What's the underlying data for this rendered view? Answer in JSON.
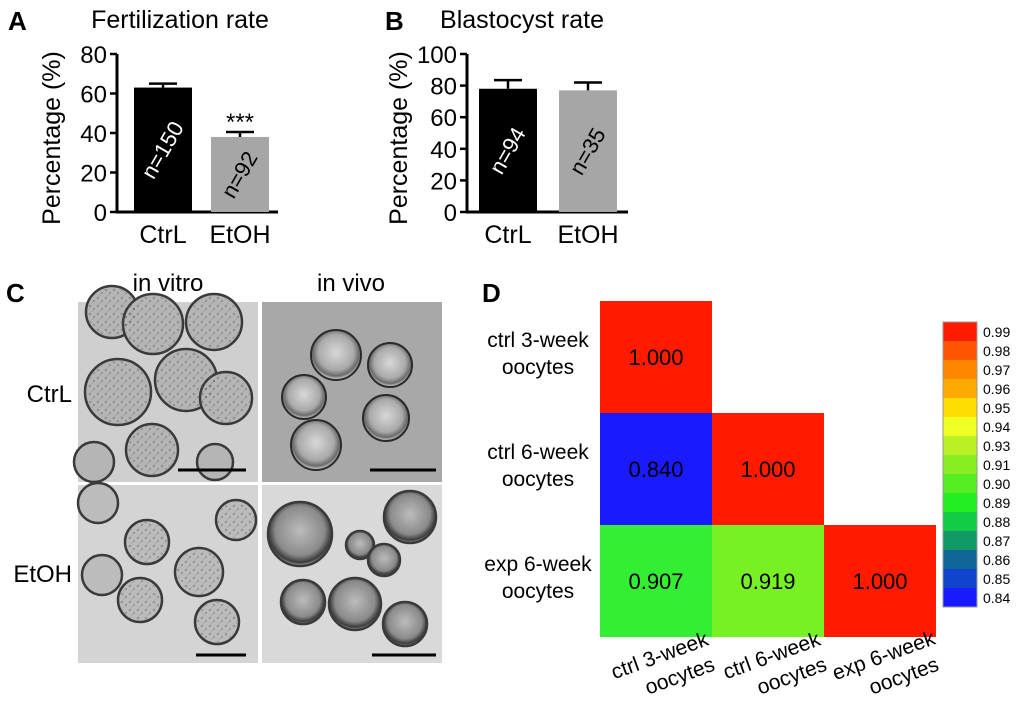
{
  "panels": {
    "A": {
      "letter": "A"
    },
    "B": {
      "letter": "B"
    },
    "C": {
      "letter": "C",
      "col_labels": [
        "in vitro",
        "in vivo"
      ],
      "row_labels": [
        "CtrL",
        "EtOH"
      ]
    },
    "D": {
      "letter": "D"
    }
  },
  "chart_data": [
    {
      "type": "bar",
      "title": "Fertilization rate",
      "ylabel": "Percentage (%)",
      "categories": [
        "CtrL",
        "EtOH"
      ],
      "values": [
        63,
        38
      ],
      "errors": [
        2,
        2.5
      ],
      "bar_colors": [
        "#000000",
        "#a6a6a6"
      ],
      "bar_labels": [
        "n=150",
        "n=92"
      ],
      "significance": [
        "",
        "***"
      ],
      "ylim": [
        0,
        80
      ],
      "yticks": [
        "0",
        "20",
        "40",
        "60",
        "80"
      ]
    },
    {
      "type": "bar",
      "title": "Blastocyst rate",
      "ylabel": "Percentage (%)",
      "categories": [
        "CtrL",
        "EtOH"
      ],
      "values": [
        78,
        77
      ],
      "errors": [
        5.5,
        5
      ],
      "bar_colors": [
        "#000000",
        "#a6a6a6"
      ],
      "bar_labels": [
        "n=94",
        "n=35"
      ],
      "ylim": [
        0,
        100
      ],
      "yticks": [
        "0",
        "20",
        "40",
        "60",
        "80",
        "100"
      ]
    },
    {
      "type": "heatmap",
      "rows": [
        "ctrl 3-week oocytes",
        "ctrl 6-week oocytes",
        "exp 6-week oocytes"
      ],
      "cols": [
        "ctrl 3-week oocytes",
        "ctrl 6-week oocytes",
        "exp 6-week oocytes"
      ],
      "row_label_lines": [
        [
          "ctrl 3-week",
          "oocytes"
        ],
        [
          "ctrl 6-week",
          "oocytes"
        ],
        [
          "exp 6-week",
          "oocytes"
        ]
      ],
      "col_label_lines": [
        [
          "ctrl 3-week",
          "oocytes"
        ],
        [
          "ctrl 6-week",
          "oocytes"
        ],
        [
          "exp 6-week",
          "oocytes"
        ]
      ],
      "values": [
        [
          1.0,
          null,
          null
        ],
        [
          0.84,
          1.0,
          null
        ],
        [
          0.907,
          0.919,
          1.0
        ]
      ],
      "value_labels": [
        [
          "1.000",
          "",
          ""
        ],
        [
          "0.840",
          "1.000",
          ""
        ],
        [
          "0.907",
          "0.919",
          "1.000"
        ]
      ],
      "cell_colors": [
        [
          "#ff1a00",
          "",
          ""
        ],
        [
          "#1a1aff",
          "#ff1a00",
          ""
        ],
        [
          "#33ee33",
          "#77f024",
          "#ff1a00"
        ]
      ],
      "legend": {
        "labels": [
          "0.99",
          "0.98",
          "0.97",
          "0.96",
          "0.95",
          "0.94",
          "0.93",
          "0.91",
          "0.90",
          "0.89",
          "0.88",
          "0.87",
          "0.86",
          "0.85",
          "0.84"
        ],
        "colors": [
          "#ff1a00",
          "#ff5500",
          "#ff8800",
          "#ffaa00",
          "#ffdd00",
          "#eeff22",
          "#bbf022",
          "#88ee22",
          "#55ee22",
          "#22ee22",
          "#11cc44",
          "#119966",
          "#116699",
          "#1144cc",
          "#1a1aff"
        ]
      }
    }
  ]
}
